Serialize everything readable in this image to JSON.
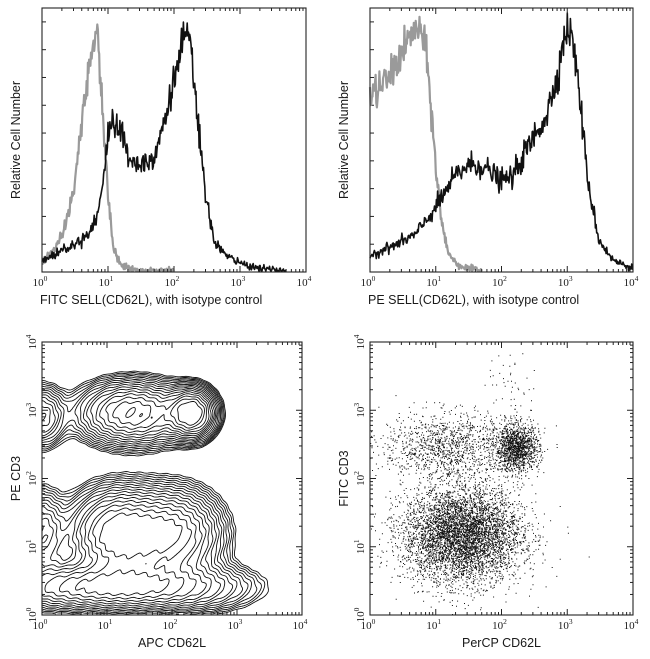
{
  "chart_data": [
    {
      "type": "line",
      "panel": "top-left",
      "xscale": "log",
      "xlim": [
        1,
        10000
      ],
      "x_ticks": [
        "10^0",
        "10^1",
        "10^2",
        "10^3",
        "10^4"
      ],
      "x_tick_base": "10",
      "x_tick_exps": [
        "0",
        "1",
        "2",
        "3",
        "4"
      ],
      "xlabel": "FITC  SELL(CD62L),  with isotype control",
      "ylabel": "Relative Cell Number",
      "series": [
        {
          "color": "#9a9a9a",
          "x": [
            1,
            2,
            3,
            4,
            5,
            6,
            6.5,
            7,
            8,
            9,
            10,
            12,
            14,
            17,
            20,
            30,
            50,
            100
          ],
          "y": [
            3,
            12,
            30,
            55,
            75,
            88,
            90,
            86,
            68,
            45,
            28,
            10,
            4,
            2,
            1,
            0,
            0,
            0
          ]
        },
        {
          "color": "#111111",
          "x": [
            1,
            1.5,
            2,
            3,
            5,
            7,
            9,
            10,
            12,
            15,
            20,
            30,
            50,
            70,
            100,
            130,
            150,
            180,
            220,
            300,
            400,
            600,
            1000,
            2000,
            5000
          ],
          "y": [
            4,
            6,
            8,
            10,
            14,
            22,
            38,
            52,
            58,
            54,
            44,
            40,
            44,
            56,
            72,
            86,
            90,
            84,
            62,
            28,
            12,
            6,
            3,
            1,
            0
          ]
        }
      ]
    },
    {
      "type": "line",
      "panel": "top-right",
      "xscale": "log",
      "xlim": [
        1,
        10000
      ],
      "x_ticks": [
        "10^0",
        "10^1",
        "10^2",
        "10^3",
        "10^4"
      ],
      "x_tick_base": "10",
      "x_tick_exps": [
        "0",
        "1",
        "2",
        "3",
        "4"
      ],
      "xlabel": "PE  SELL(CD62L),  with isotype control",
      "ylabel": "Relative Cell Number",
      "series": [
        {
          "color": "#9a9a9a",
          "x": [
            1,
            1.5,
            2,
            3,
            4,
            5,
            6,
            7,
            8,
            10,
            12,
            15,
            20,
            30,
            50
          ],
          "y": [
            66,
            70,
            74,
            82,
            88,
            92,
            90,
            84,
            70,
            40,
            20,
            8,
            3,
            1,
            0
          ]
        },
        {
          "color": "#111111",
          "x": [
            1,
            2,
            3,
            5,
            10,
            20,
            30,
            50,
            80,
            100,
            150,
            200,
            300,
            500,
            700,
            900,
            1000,
            1200,
            1500,
            2000,
            3000,
            5000,
            10000
          ],
          "y": [
            6,
            9,
            11,
            14,
            24,
            36,
            40,
            40,
            36,
            34,
            36,
            42,
            50,
            60,
            74,
            88,
            92,
            88,
            70,
            36,
            12,
            4,
            1
          ]
        }
      ]
    },
    {
      "type": "contour",
      "panel": "bottom-left",
      "xscale": "log",
      "yscale": "log",
      "xlim": [
        1,
        10000
      ],
      "ylim": [
        1,
        10000
      ],
      "x_ticks": [
        "10^0",
        "10^1",
        "10^2",
        "10^3",
        "10^4"
      ],
      "y_ticks": [
        "10^0",
        "10^1",
        "10^2",
        "10^3",
        "10^4"
      ],
      "x_tick_base": "10",
      "x_tick_exps": [
        "0",
        "1",
        "2",
        "3",
        "4"
      ],
      "y_tick_base": "10",
      "y_tick_exps": [
        "0",
        "1",
        "2",
        "3",
        "4"
      ],
      "xlabel": "APC CD62L",
      "ylabel": "PE CD3",
      "populations": [
        {
          "x": 1,
          "y": 800,
          "sx": 0.2,
          "sy": 0.25,
          "w": 0.35
        },
        {
          "x": 25,
          "y": 900,
          "sx": 0.45,
          "sy": 0.25,
          "w": 0.8
        },
        {
          "x": 200,
          "y": 900,
          "sx": 0.2,
          "sy": 0.2,
          "w": 1.0
        },
        {
          "x": 1,
          "y": 15,
          "sx": 0.2,
          "sy": 0.35,
          "w": 0.35
        },
        {
          "x": 15,
          "y": 15,
          "sx": 0.4,
          "sy": 0.35,
          "w": 1.0
        },
        {
          "x": 100,
          "y": 15,
          "sx": 0.4,
          "sy": 0.35,
          "w": 0.8
        },
        {
          "x": 5,
          "y": 2.5,
          "sx": 0.8,
          "sy": 0.2,
          "w": 0.7
        },
        {
          "x": 80,
          "y": 2.5,
          "sx": 0.7,
          "sy": 0.2,
          "w": 0.5
        }
      ]
    },
    {
      "type": "scatter",
      "panel": "bottom-right",
      "xscale": "log",
      "yscale": "log",
      "xlim": [
        1,
        10000
      ],
      "ylim": [
        1,
        10000
      ],
      "x_ticks": [
        "10^0",
        "10^1",
        "10^2",
        "10^3",
        "10^4"
      ],
      "y_ticks": [
        "10^0",
        "10^1",
        "10^2",
        "10^3",
        "10^4"
      ],
      "x_tick_base": "10",
      "x_tick_exps": [
        "0",
        "1",
        "2",
        "3",
        "4"
      ],
      "y_tick_base": "10",
      "y_tick_exps": [
        "0",
        "1",
        "2",
        "3",
        "4"
      ],
      "xlabel": "PerCP CD62L",
      "ylabel": "FITC CD3",
      "populations": [
        {
          "x": 25,
          "y": 15,
          "sx": 0.45,
          "sy": 0.35,
          "n": 5200
        },
        {
          "x": 170,
          "y": 280,
          "sx": 0.17,
          "sy": 0.17,
          "n": 1300
        },
        {
          "x": 15,
          "y": 300,
          "sx": 0.5,
          "sy": 0.25,
          "n": 1200
        },
        {
          "x": 150,
          "y": 1500,
          "sx": 0.2,
          "sy": 0.35,
          "n": 60
        }
      ]
    }
  ]
}
